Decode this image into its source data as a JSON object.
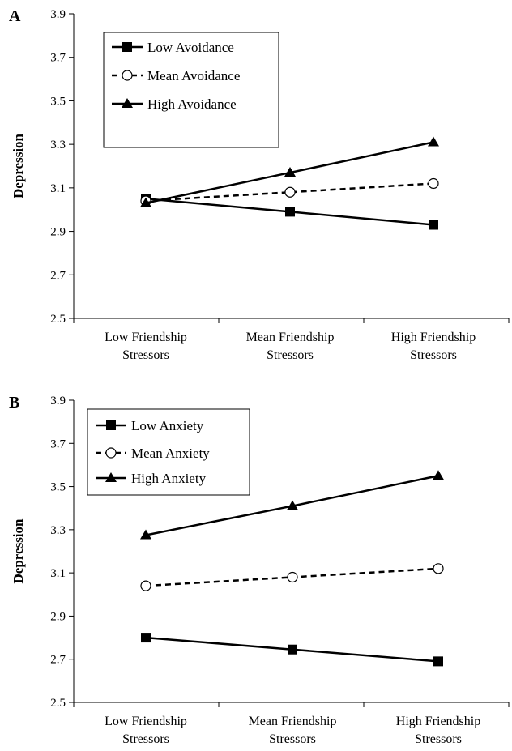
{
  "chart_data": [
    {
      "type": "line",
      "panel_label": "A",
      "ylabel": "Depression",
      "ylim": [
        2.5,
        3.9
      ],
      "yticks": [
        "2.5",
        "2.7",
        "2.9",
        "3.1",
        "3.3",
        "3.5",
        "3.7",
        "3.9"
      ],
      "categories": [
        [
          "Low Friendship",
          "Stressors"
        ],
        [
          "Mean Friendship",
          "Stressors"
        ],
        [
          "High Friendship",
          "Stressors"
        ]
      ],
      "legend_position": "top-left",
      "grid": false,
      "series": [
        {
          "name": "Low Avoidance",
          "values": [
            3.05,
            2.99,
            2.93
          ],
          "marker": "square",
          "dash": "solid",
          "color": "#000000"
        },
        {
          "name": "Mean Avoidance",
          "values": [
            3.04,
            3.08,
            3.12
          ],
          "marker": "circle-open",
          "dash": "dashed",
          "color": "#000000"
        },
        {
          "name": "High Avoidance",
          "values": [
            3.03,
            3.17,
            3.31
          ],
          "marker": "triangle",
          "dash": "solid",
          "color": "#000000"
        }
      ]
    },
    {
      "type": "line",
      "panel_label": "B",
      "ylabel": "Depression",
      "ylim": [
        2.5,
        3.9
      ],
      "yticks": [
        "2.5",
        "2.7",
        "2.9",
        "3.1",
        "3.3",
        "3.5",
        "3.7",
        "3.9"
      ],
      "categories": [
        [
          "Low Friendship",
          "Stressors"
        ],
        [
          "Mean Friendship",
          "Stressors"
        ],
        [
          "High Friendship",
          "Stressors"
        ]
      ],
      "legend_position": "top-left",
      "grid": false,
      "series": [
        {
          "name": "Low Anxiety",
          "values": [
            2.8,
            2.745,
            2.69
          ],
          "marker": "square",
          "dash": "solid",
          "color": "#000000"
        },
        {
          "name": "Mean Anxiety",
          "values": [
            3.04,
            3.08,
            3.12
          ],
          "marker": "circle-open",
          "dash": "dashed",
          "color": "#000000"
        },
        {
          "name": "High Anxiety",
          "values": [
            3.275,
            3.41,
            3.55
          ],
          "marker": "triangle",
          "dash": "solid",
          "color": "#000000"
        }
      ]
    }
  ]
}
